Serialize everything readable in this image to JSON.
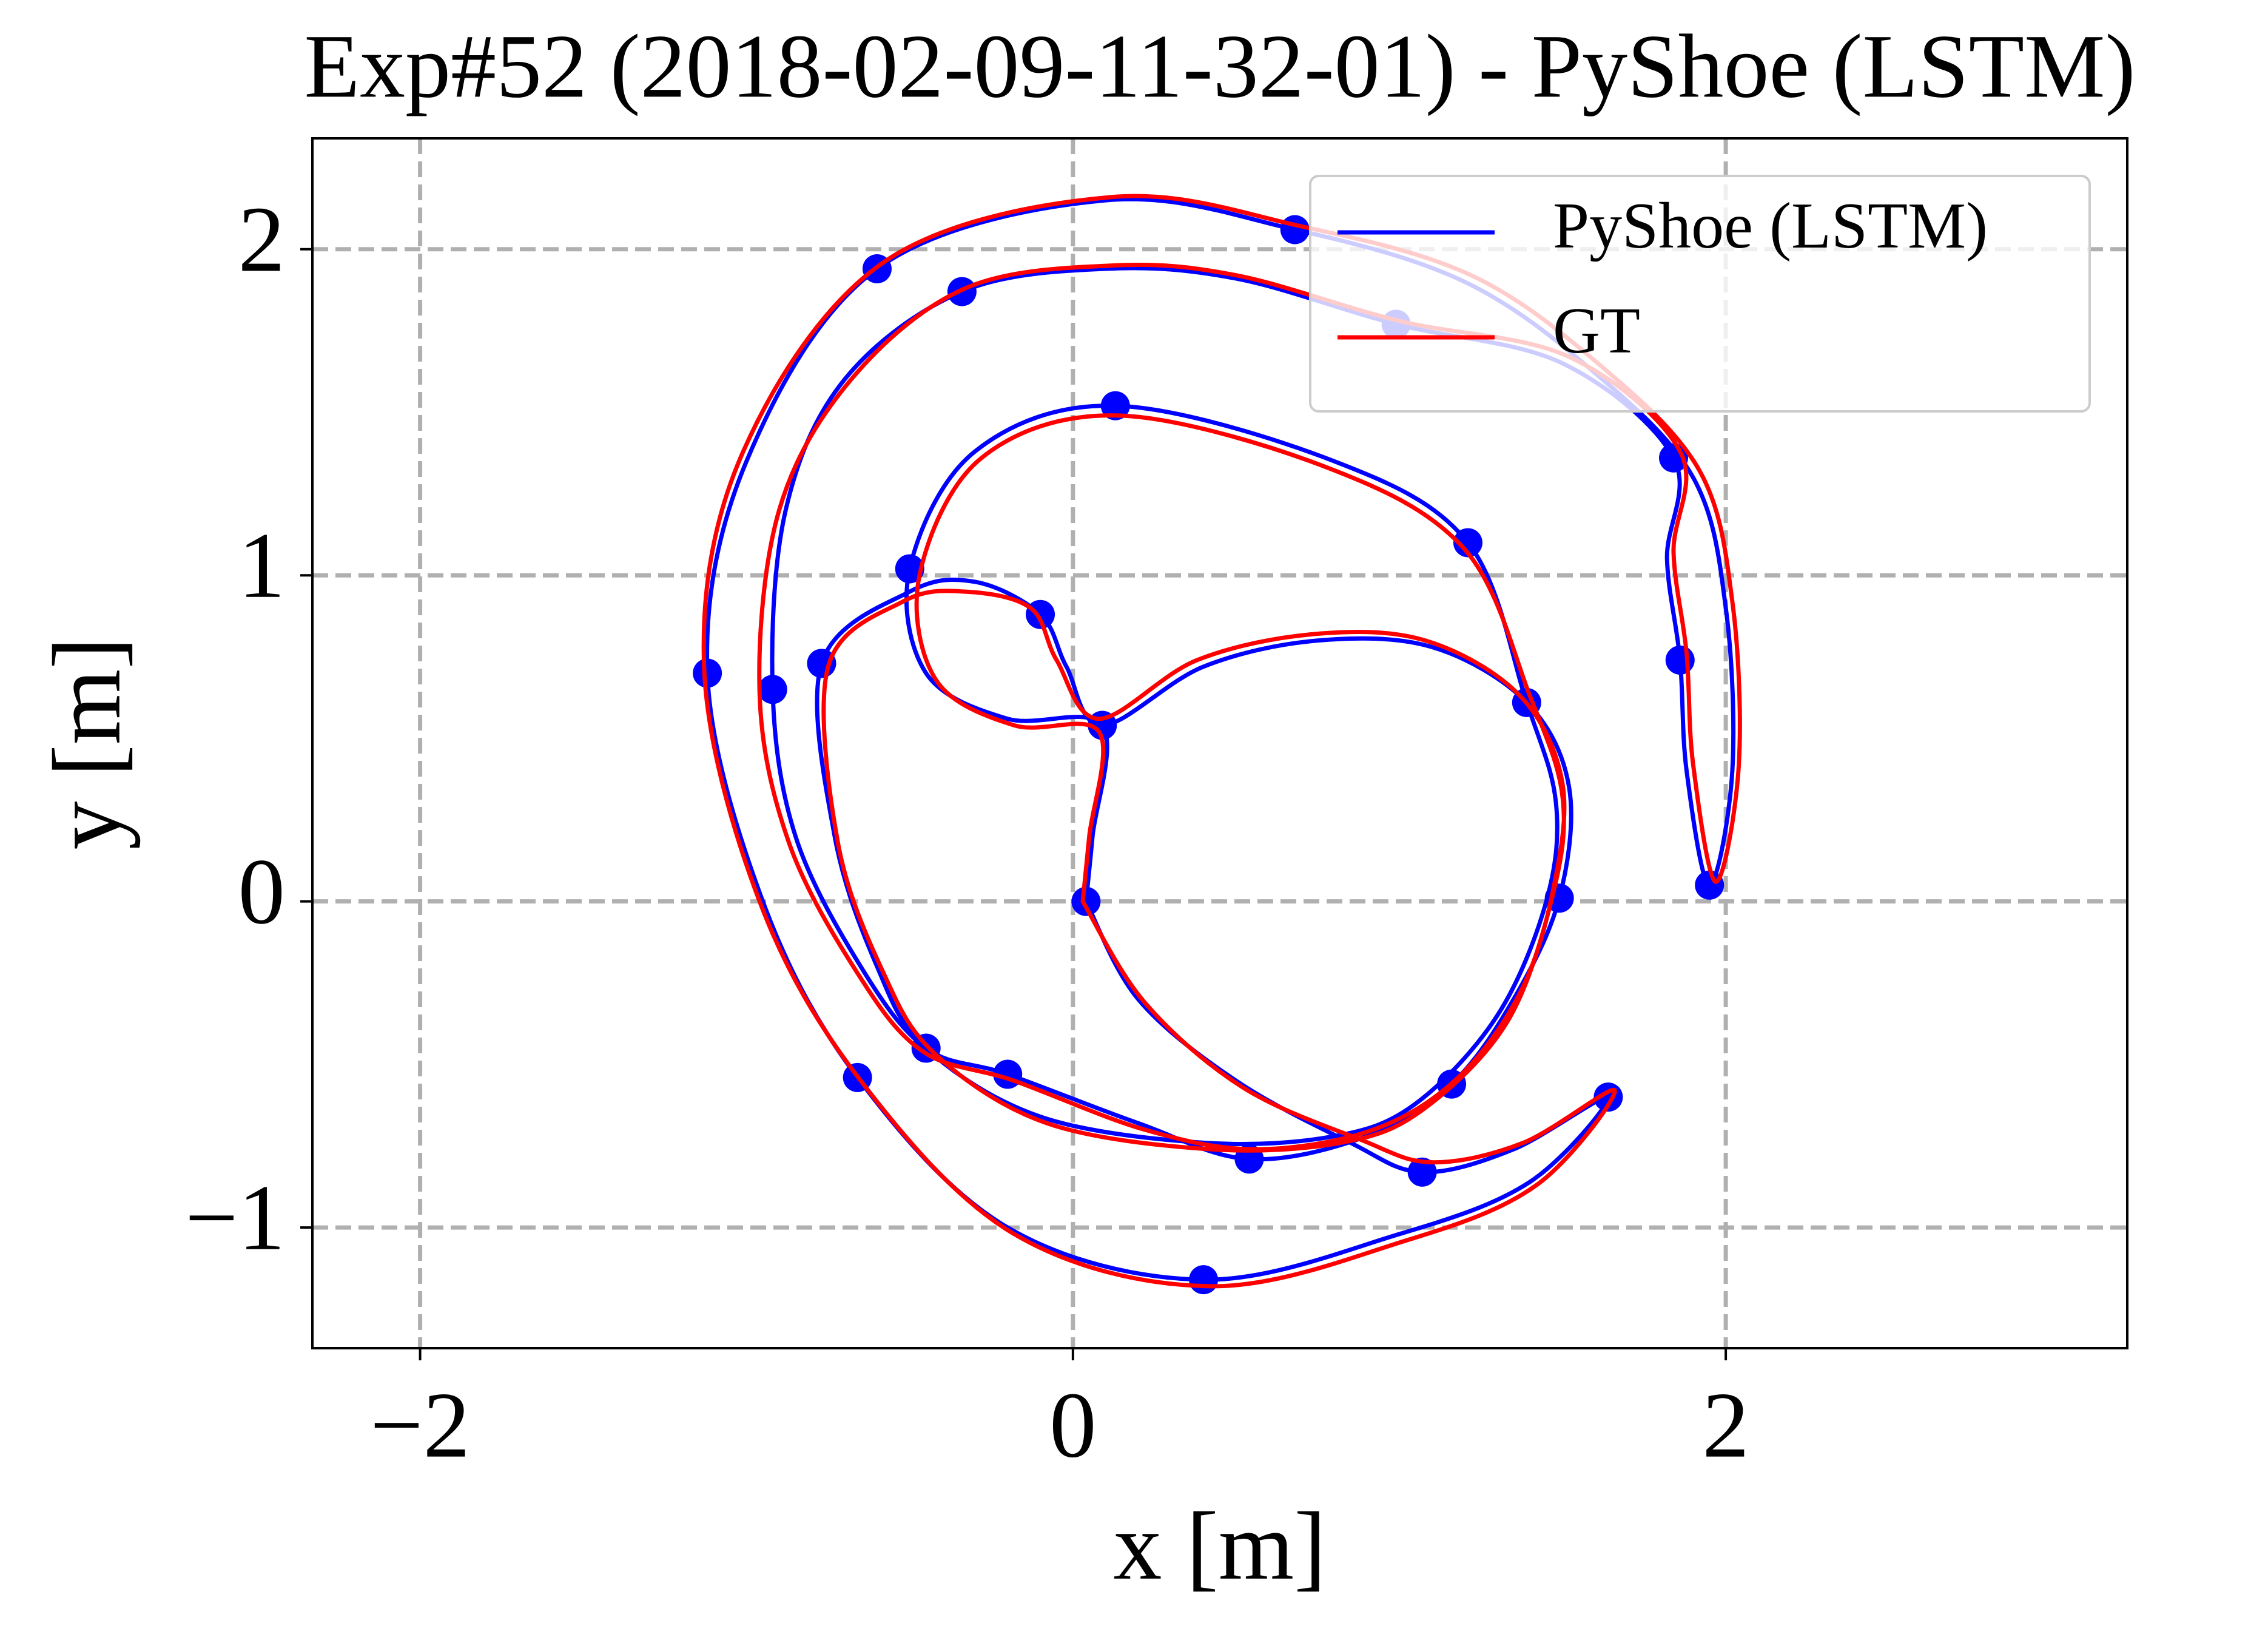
{
  "chart_data": {
    "type": "line",
    "title": "Exp#52 (2018-02-09-11-32-01) - PyShoe (LSTM)",
    "x_label": "x [m]",
    "y_label": "y [m]",
    "xlim": [
      -2.33,
      3.23
    ],
    "ylim": [
      -1.37,
      2.34
    ],
    "xticks": [
      {
        "value": -2,
        "label": "−2"
      },
      0,
      2
    ],
    "yticks": [
      {
        "value": -1,
        "label": "−1"
      },
      0,
      1,
      2
    ],
    "grid": true,
    "legend": "upper right",
    "series": [
      {
        "name": "PyShoe (LSTM)",
        "color": "#0000ff",
        "x": [
          0.04,
          0.2,
          0.5,
          0.85,
          1.07,
          1.35,
          1.64,
          1.4,
          1.0,
          0.4,
          -0.2,
          -0.66,
          -0.95,
          -1.12,
          -1.0,
          -0.6,
          0.1,
          0.68,
          1.2,
          1.6,
          1.9,
          2.0,
          2.02,
          1.95,
          1.88,
          1.86,
          1.82,
          1.84,
          1.5,
          0.99,
          0.5,
          0.1,
          -0.34,
          -0.7,
          -0.88,
          -0.92,
          -0.85,
          -0.65,
          -0.45,
          -0.2,
          0.2,
          0.54,
          0.9,
          1.16,
          1.35,
          1.49,
          1.52,
          1.39,
          1.1,
          0.75,
          0.4,
          0.09,
          -0.02,
          -0.1,
          -0.3,
          -0.5,
          -0.77,
          -0.73,
          -0.6,
          -0.45,
          -0.1,
          0.4,
          0.8,
          1.05,
          1.3,
          1.45,
          1.48,
          1.39,
          1.21,
          0.8,
          0.13,
          -0.3,
          -0.5,
          -0.45,
          -0.2,
          0.09,
          0.06,
          0.04
        ],
        "y": [
          0.0,
          -0.3,
          -0.55,
          -0.74,
          -0.83,
          -0.76,
          -0.6,
          -0.86,
          -1.02,
          -1.16,
          -1.0,
          -0.54,
          0.0,
          0.7,
          1.35,
          1.94,
          2.15,
          2.06,
          1.9,
          1.62,
          1.3,
          0.9,
          0.4,
          0.05,
          0.4,
          0.74,
          1.05,
          1.36,
          1.65,
          1.77,
          1.91,
          1.94,
          1.87,
          1.6,
          1.2,
          0.65,
          0.2,
          -0.2,
          -0.45,
          -0.53,
          -0.68,
          -0.79,
          -0.72,
          -0.56,
          -0.3,
          0.01,
          0.35,
          0.61,
          0.78,
          0.8,
          0.72,
          0.54,
          0.72,
          0.88,
          0.98,
          0.95,
          0.73,
          0.2,
          -0.2,
          -0.45,
          -0.66,
          -0.74,
          -0.72,
          -0.62,
          -0.35,
          0.0,
          0.3,
          0.61,
          1.1,
          1.35,
          1.52,
          1.38,
          1.02,
          0.7,
          0.56,
          0.54,
          0.2,
          0.0
        ],
        "marker_x": [
          -0.6,
          -0.34,
          0.68,
          0.99,
          0.13,
          1.84,
          1.21,
          -0.5,
          -0.1,
          -0.77,
          -1.12,
          -0.92,
          1.86,
          0.09,
          1.39,
          0.04,
          1.49,
          1.95,
          -0.45,
          -0.66,
          -0.2,
          1.16,
          1.64,
          0.54,
          1.07,
          0.4
        ],
        "marker_y": [
          1.94,
          1.87,
          2.06,
          1.77,
          1.52,
          1.36,
          1.1,
          1.02,
          0.88,
          0.73,
          0.7,
          0.65,
          0.74,
          0.54,
          0.61,
          0.0,
          0.01,
          0.05,
          -0.45,
          -0.54,
          -0.53,
          -0.56,
          -0.6,
          -0.79,
          -0.83,
          -1.16
        ]
      },
      {
        "name": "GT",
        "color": "#ff0000",
        "x": [
          0.03,
          0.22,
          0.52,
          0.88,
          1.1,
          1.38,
          1.66,
          1.42,
          1.02,
          0.42,
          -0.18,
          -0.65,
          -0.96,
          -1.13,
          -1.01,
          -0.58,
          0.12,
          0.7,
          1.22,
          1.62,
          1.92,
          2.02,
          2.04,
          1.97,
          1.9,
          1.88,
          1.84,
          1.86,
          1.52,
          1.0,
          0.5,
          0.12,
          -0.33,
          -0.68,
          -0.9,
          -0.96,
          -0.87,
          -0.66,
          -0.46,
          -0.18,
          0.22,
          0.56,
          0.92,
          1.18,
          1.37,
          1.47,
          1.5,
          1.37,
          1.08,
          0.74,
          0.38,
          0.08,
          -0.05,
          -0.13,
          -0.33,
          -0.52,
          -0.75,
          -0.72,
          -0.58,
          -0.42,
          -0.08,
          0.42,
          0.82,
          1.07,
          1.33,
          1.47,
          1.5,
          1.4,
          1.2,
          0.78,
          0.14,
          -0.28,
          -0.47,
          -0.42,
          -0.18,
          0.08,
          0.05,
          0.03
        ],
        "y": [
          0.0,
          -0.31,
          -0.57,
          -0.73,
          -0.8,
          -0.74,
          -0.58,
          -0.87,
          -1.04,
          -1.18,
          -1.02,
          -0.55,
          0.0,
          0.72,
          1.38,
          1.96,
          2.16,
          2.07,
          1.92,
          1.64,
          1.32,
          0.92,
          0.42,
          0.06,
          0.42,
          0.76,
          1.07,
          1.38,
          1.67,
          1.78,
          1.92,
          1.95,
          1.88,
          1.6,
          1.2,
          0.64,
          0.18,
          -0.22,
          -0.46,
          -0.55,
          -0.7,
          -0.76,
          -0.7,
          -0.54,
          -0.28,
          0.03,
          0.36,
          0.63,
          0.8,
          0.82,
          0.74,
          0.56,
          0.74,
          0.9,
          0.95,
          0.92,
          0.72,
          0.18,
          -0.22,
          -0.47,
          -0.68,
          -0.76,
          -0.74,
          -0.64,
          -0.37,
          0.02,
          0.32,
          0.63,
          1.08,
          1.33,
          1.49,
          1.36,
          1.0,
          0.68,
          0.54,
          0.52,
          0.2,
          0.0
        ]
      }
    ]
  }
}
